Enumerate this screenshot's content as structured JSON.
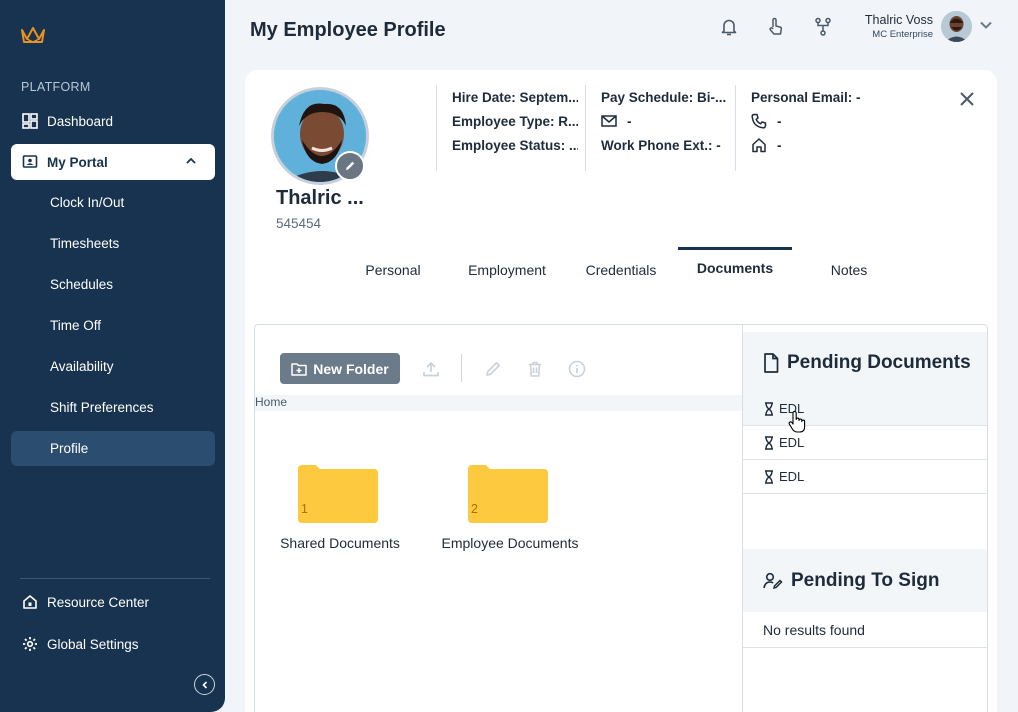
{
  "sidebar": {
    "section_label": "PLATFORM",
    "dashboard_label": "Dashboard",
    "my_portal_label": "My Portal",
    "sub_items": [
      "Clock In/Out",
      "Timesheets",
      "Schedules",
      "Time Off",
      "Availability",
      "Shift Preferences",
      "Profile"
    ],
    "resource_center_label": "Resource Center",
    "global_settings_label": "Global Settings"
  },
  "header": {
    "title": "My Employee Profile",
    "user_name": "Thalric Voss",
    "user_org": "MC Enterprise"
  },
  "profile": {
    "name": "Thalric ...",
    "employee_id": "545454",
    "hire_date_label": "Hire Date: Septem...",
    "employee_type_label": "Employee Type: R...",
    "employee_status_label": "Employee Status: ...",
    "pay_schedule_label": "Pay Schedule: Bi-...",
    "email_value": "-",
    "work_phone_ext_label": "Work Phone Ext.: -",
    "personal_email_label": "Personal Email: -",
    "phone_value": "-",
    "home_value": "-"
  },
  "tabs": [
    "Personal",
    "Employment",
    "Credentials",
    "Documents",
    "Notes"
  ],
  "active_tab": "Documents",
  "documents": {
    "new_folder_label": "New Folder",
    "breadcrumb": "Home",
    "folders": [
      {
        "name": "Shared Documents",
        "count": "1"
      },
      {
        "name": "Employee Documents",
        "count": "2"
      }
    ],
    "pending_title": "Pending Documents",
    "pending_items": [
      "EDL",
      "EDL",
      "EDL"
    ],
    "to_sign_title": "Pending To Sign",
    "to_sign_empty": "No results found"
  },
  "colors": {
    "sidebar_bg": "#17334f",
    "accent": "#e8931f",
    "folder": "#fdc93f",
    "button": "#6b7b89"
  }
}
